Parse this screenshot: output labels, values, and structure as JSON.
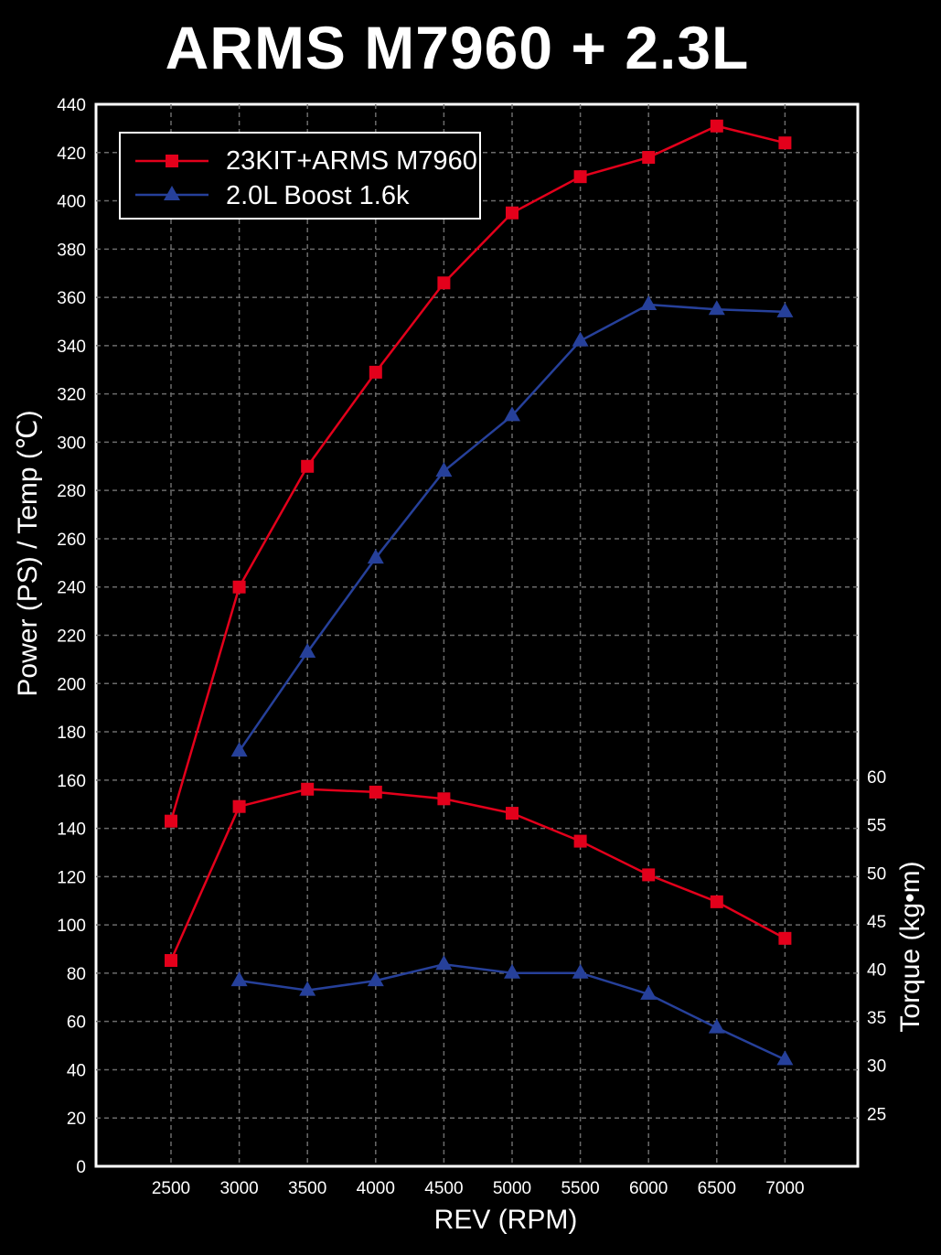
{
  "chart_data": {
    "type": "line",
    "title": "ARMS M7960 + 2.3L",
    "xlabel": "REV (RPM)",
    "ylabel": "Power (PS) / Temp  (℃)",
    "y2label": "Torque (kg•m)",
    "x": [
      2500,
      3000,
      3500,
      4000,
      4500,
      5000,
      5500,
      6000,
      6500,
      7000
    ],
    "x_tick_labels": [
      "2500",
      "3000",
      "3500",
      "4000",
      "4500",
      "5000",
      "5500",
      "6000",
      "6500",
      "7000"
    ],
    "ylim": [
      0,
      440
    ],
    "y_ticks": [
      0,
      20,
      40,
      60,
      80,
      100,
      120,
      140,
      160,
      180,
      200,
      220,
      240,
      260,
      280,
      300,
      320,
      340,
      360,
      380,
      400,
      420,
      440
    ],
    "y2_ticks": [
      25,
      30,
      35,
      40,
      45,
      50,
      55,
      60
    ],
    "grid": true,
    "legend_position": "top-left",
    "series": [
      {
        "name": "23KIT+ARMS M7960",
        "metric": "power",
        "color": "#e3001b",
        "marker": "square",
        "x": [
          2500,
          3000,
          3500,
          4000,
          4500,
          5000,
          5500,
          6000,
          6500,
          7000
        ],
        "values": [
          143,
          240,
          290,
          329,
          366,
          395,
          410,
          418,
          431,
          424
        ]
      },
      {
        "name": "2.0L Boost 1.6k",
        "metric": "power",
        "color": "#26409a",
        "marker": "triangle",
        "x": [
          3000,
          3500,
          4000,
          4500,
          5000,
          5500,
          6000,
          6500,
          7000
        ],
        "values": [
          172,
          213,
          252,
          288,
          311,
          342,
          357,
          355,
          354
        ]
      },
      {
        "name": "23KIT+ARMS M7960",
        "metric": "torque",
        "color": "#e3001b",
        "marker": "square",
        "x": [
          2500,
          3000,
          3500,
          4000,
          4500,
          5000,
          5500,
          6000,
          6500,
          7000
        ],
        "values": [
          40.9,
          56.9,
          58.7,
          58.4,
          57.7,
          56.2,
          53.3,
          49.8,
          47.0,
          43.2
        ]
      },
      {
        "name": "2.0L Boost 1.6k",
        "metric": "torque",
        "color": "#26409a",
        "marker": "triangle",
        "x": [
          3000,
          3500,
          4000,
          4500,
          5000,
          5500,
          6000,
          6500,
          7000
        ],
        "values": [
          38.8,
          37.8,
          38.8,
          40.5,
          39.6,
          39.6,
          37.4,
          33.9,
          30.6
        ]
      }
    ]
  }
}
